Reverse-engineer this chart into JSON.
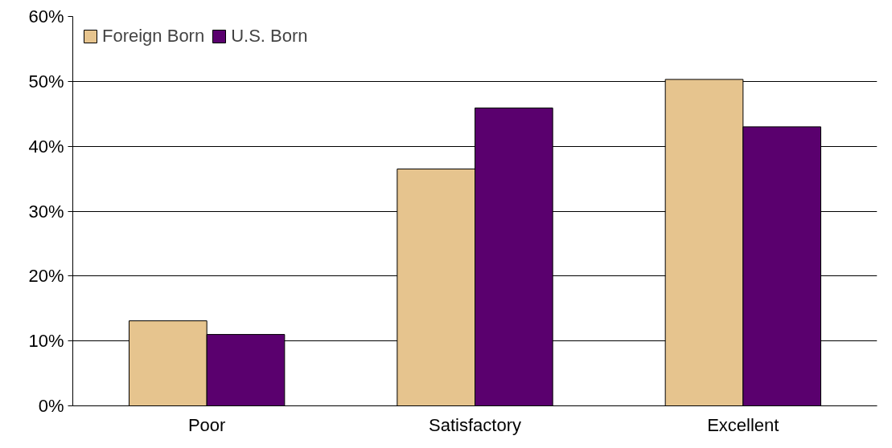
{
  "chart_data": {
    "type": "bar",
    "categories": [
      "Poor",
      "Satisfactory",
      "Excellent"
    ],
    "series": [
      {
        "name": "Foreign Born",
        "color": "#e6c48e",
        "values": [
          13.1,
          36.5,
          50.3
        ]
      },
      {
        "name": "U.S. Born",
        "color": "#5a006e",
        "values": [
          11.0,
          45.9,
          43.0
        ]
      }
    ],
    "ylim": [
      0,
      60
    ],
    "yticks": [
      {
        "value": 0,
        "label": "0%"
      },
      {
        "value": 10,
        "label": "10%"
      },
      {
        "value": 20,
        "label": "20%"
      },
      {
        "value": 30,
        "label": "30%"
      },
      {
        "value": 40,
        "label": "40%"
      },
      {
        "value": 50,
        "label": "50%"
      },
      {
        "value": 60,
        "label": "60%"
      }
    ],
    "grid": "y",
    "legend": "top left"
  }
}
